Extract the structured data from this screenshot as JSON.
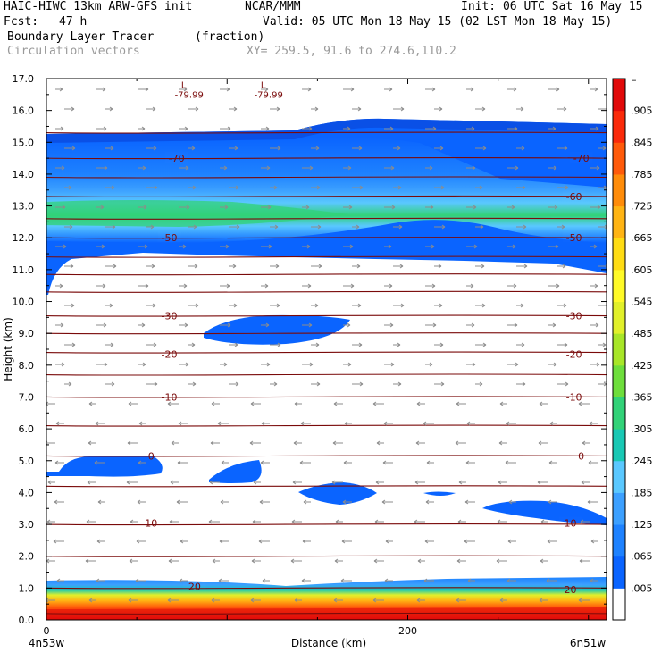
{
  "header": {
    "model": "HAIC-HIWC 13km ARW-GFS init",
    "org": "NCAR/MMM",
    "init": "Init: 06 UTC Sat 16 May 15",
    "fcst_label": "Fcst:",
    "fcst_value": "47 h",
    "valid": "Valid: 05 UTC Mon 18 May 15 (02 LST Mon 18 May 15)",
    "field": "Boundary Layer Tracer",
    "units": "(fraction)",
    "vectors": "Circulation vectors",
    "xy": "XY= 259.5, 91.6 to 274.6,110.2"
  },
  "chart_data": {
    "type": "heatmap",
    "ylabel": "Height (km)",
    "xlabel": "Distance (km)",
    "x_left_label": "4n53w",
    "x_right_label": "6n51w",
    "xlim": [
      0,
      310
    ],
    "ylim": [
      0,
      17
    ],
    "x_ticks": [
      0,
      200
    ],
    "y_ticks": [
      "0.0",
      "1.0",
      "2.0",
      "3.0",
      "4.0",
      "5.0",
      "6.0",
      "7.0",
      "8.0",
      "9.0",
      "10.0",
      "11.0",
      "12.0",
      "13.0",
      "14.0",
      "15.0",
      "16.0",
      "17.0"
    ],
    "colorbar": {
      "labels": [
        ".005",
        ".065",
        ".125",
        ".185",
        ".245",
        ".305",
        ".365",
        ".425",
        ".485",
        ".545",
        ".605",
        ".665",
        ".725",
        ".785",
        ".845",
        ".905"
      ],
      "colors": [
        "#ffffff",
        "#0a64ff",
        "#1e82ff",
        "#3ca0ff",
        "#5ac8ff",
        "#19c8b4",
        "#32d278",
        "#6ede3c",
        "#a8e628",
        "#e1f02a",
        "#fffa28",
        "#ffdc14",
        "#ffb414",
        "#ff8c0a",
        "#ff5a0a",
        "#fa2a0a",
        "#e10a0a"
      ]
    },
    "temperature_labels": [
      {
        "text": "-70",
        "x": 72,
        "y": 14.5
      },
      {
        "text": "-70",
        "x": 296,
        "y": 14.5
      },
      {
        "text": "-60",
        "x": 292,
        "y": 13.3
      },
      {
        "text": "-50",
        "x": 68,
        "y": 12.0
      },
      {
        "text": "-50",
        "x": 292,
        "y": 12.0
      },
      {
        "text": "-30",
        "x": 68,
        "y": 9.55
      },
      {
        "text": "-30",
        "x": 292,
        "y": 9.55
      },
      {
        "text": "-20",
        "x": 68,
        "y": 8.35
      },
      {
        "text": "-20",
        "x": 292,
        "y": 8.35
      },
      {
        "text": "-10",
        "x": 68,
        "y": 7.0
      },
      {
        "text": "-10",
        "x": 292,
        "y": 7.0
      },
      {
        "text": "0",
        "x": 58,
        "y": 5.15
      },
      {
        "text": "0",
        "x": 296,
        "y": 5.15
      },
      {
        "text": "10",
        "x": 58,
        "y": 3.05
      },
      {
        "text": "10",
        "x": 290,
        "y": 3.05
      },
      {
        "text": "20",
        "x": 82,
        "y": 1.05
      },
      {
        "text": "20",
        "x": 290,
        "y": 0.95
      }
    ],
    "minimum_labels": [
      {
        "symbol": "L",
        "value": "-79.99",
        "x": 76,
        "y": 16.7
      },
      {
        "symbol": "L",
        "value": "-79.99",
        "x": 120,
        "y": 16.7
      }
    ]
  }
}
